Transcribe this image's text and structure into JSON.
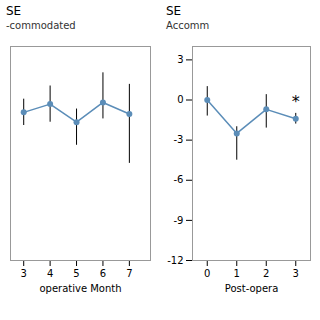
{
  "chart_data": [
    {
      "type": "line",
      "title": "SE",
      "subtitle": "-commodated",
      "x": [
        3,
        4,
        5,
        6,
        7
      ],
      "values": [
        -0.5,
        -0.25,
        -0.8,
        -0.2,
        -0.55
      ],
      "yerr_lower": [
        0.4,
        0.55,
        0.7,
        0.5,
        1.5
      ],
      "yerr_upper": [
        0.4,
        0.55,
        0.4,
        0.9,
        0.9
      ],
      "xlabel": "operative Month",
      "xlim": [
        2.5,
        7.8
      ],
      "xticks": [
        3,
        4,
        5,
        6,
        7
      ],
      "ylim": [
        -5.0,
        1.5
      ],
      "tick_labels": "x",
      "color": "#5b8db8",
      "marker": "o"
    },
    {
      "type": "line",
      "title": "SE",
      "subtitle": "Accomm",
      "x": [
        0,
        1,
        2,
        3
      ],
      "values": [
        0.0,
        -2.5,
        -0.7,
        -1.4
      ],
      "yerr_lower": [
        1.2,
        2.0,
        1.4,
        0.4
      ],
      "yerr_upper": [
        1.0,
        0.5,
        1.1,
        0.4
      ],
      "xlabel": "Post-opera",
      "xlim": [
        -0.5,
        3.5
      ],
      "xticks": [
        0,
        1,
        2,
        3
      ],
      "ylim": [
        -12,
        4
      ],
      "yticks": [
        -12,
        -9,
        -6,
        -3,
        0,
        3
      ],
      "color": "#5b8db8",
      "marker": "o",
      "annotations": [
        {
          "text": "*",
          "x": 3
        }
      ]
    }
  ]
}
